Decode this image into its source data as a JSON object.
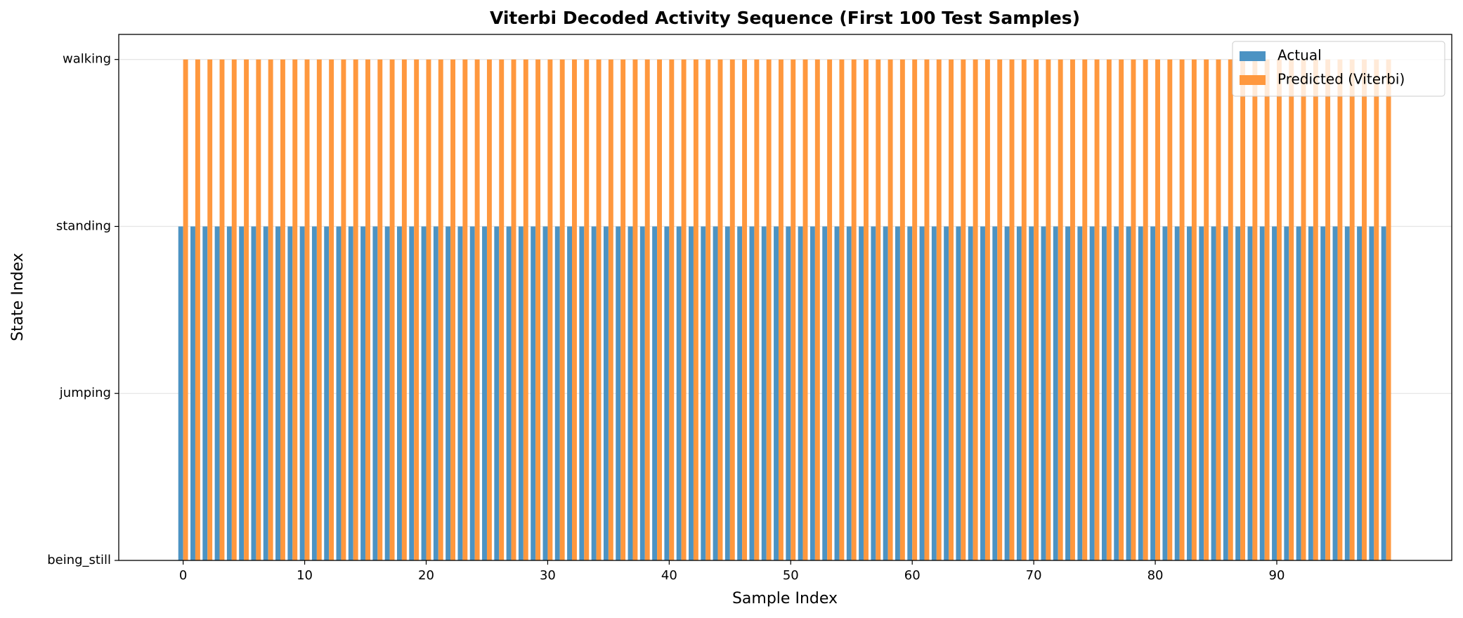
{
  "chart_data": {
    "type": "bar",
    "title": "Viterbi Decoded Activity Sequence (First 100 Test Samples)",
    "x_label": "Sample Index",
    "y_label": "State Index",
    "x": [
      0,
      1,
      2,
      3,
      4,
      5,
      6,
      7,
      8,
      9,
      10,
      11,
      12,
      13,
      14,
      15,
      16,
      17,
      18,
      19,
      20,
      21,
      22,
      23,
      24,
      25,
      26,
      27,
      28,
      29,
      30,
      31,
      32,
      33,
      34,
      35,
      36,
      37,
      38,
      39,
      40,
      41,
      42,
      43,
      44,
      45,
      46,
      47,
      48,
      49,
      50,
      51,
      52,
      53,
      54,
      55,
      56,
      57,
      58,
      59,
      60,
      61,
      62,
      63,
      64,
      65,
      66,
      67,
      68,
      69,
      70,
      71,
      72,
      73,
      74,
      75,
      76,
      77,
      78,
      79,
      80,
      81,
      82,
      83,
      84,
      85,
      86,
      87,
      88,
      89,
      90,
      91,
      92,
      93,
      94,
      95,
      96,
      97,
      98,
      99
    ],
    "series": [
      {
        "name": "Actual",
        "color": "#4c93c3",
        "values": [
          2,
          2,
          2,
          2,
          2,
          2,
          2,
          2,
          2,
          2,
          2,
          2,
          2,
          2,
          2,
          2,
          2,
          2,
          2,
          2,
          2,
          2,
          2,
          2,
          2,
          2,
          2,
          2,
          2,
          2,
          2,
          2,
          2,
          2,
          2,
          2,
          2,
          2,
          2,
          2,
          2,
          2,
          2,
          2,
          2,
          2,
          2,
          2,
          2,
          2,
          2,
          2,
          2,
          2,
          2,
          2,
          2,
          2,
          2,
          2,
          2,
          2,
          2,
          2,
          2,
          2,
          2,
          2,
          2,
          2,
          2,
          2,
          2,
          2,
          2,
          2,
          2,
          2,
          2,
          2,
          2,
          2,
          2,
          2,
          2,
          2,
          2,
          2,
          2,
          2,
          2,
          2,
          2,
          2,
          2,
          2,
          2,
          2,
          2,
          2
        ]
      },
      {
        "name": "Predicted (Viterbi)",
        "color": "#ff983e",
        "values": [
          3,
          3,
          3,
          3,
          3,
          3,
          3,
          3,
          3,
          3,
          3,
          3,
          3,
          3,
          3,
          3,
          3,
          3,
          3,
          3,
          3,
          3,
          3,
          3,
          3,
          3,
          3,
          3,
          3,
          3,
          3,
          3,
          3,
          3,
          3,
          3,
          3,
          3,
          3,
          3,
          3,
          3,
          3,
          3,
          3,
          3,
          3,
          3,
          3,
          3,
          3,
          3,
          3,
          3,
          3,
          3,
          3,
          3,
          3,
          3,
          3,
          3,
          3,
          3,
          3,
          3,
          3,
          3,
          3,
          3,
          3,
          3,
          3,
          3,
          3,
          3,
          3,
          3,
          3,
          3,
          3,
          3,
          3,
          3,
          3,
          3,
          3,
          3,
          3,
          3,
          3,
          3,
          3,
          3,
          3,
          3,
          3,
          3,
          3,
          3
        ]
      }
    ],
    "xlim": [
      -5.3,
      104.4
    ],
    "xticks": [
      0,
      10,
      20,
      30,
      40,
      50,
      60,
      70,
      80,
      90
    ],
    "ylim": [
      0,
      3.15
    ],
    "yticks": [
      {
        "value": 0,
        "label": "being_still"
      },
      {
        "value": 1,
        "label": "jumping"
      },
      {
        "value": 2,
        "label": "standing"
      },
      {
        "value": 3,
        "label": "walking"
      }
    ],
    "grid": true,
    "legend": "upper right"
  }
}
